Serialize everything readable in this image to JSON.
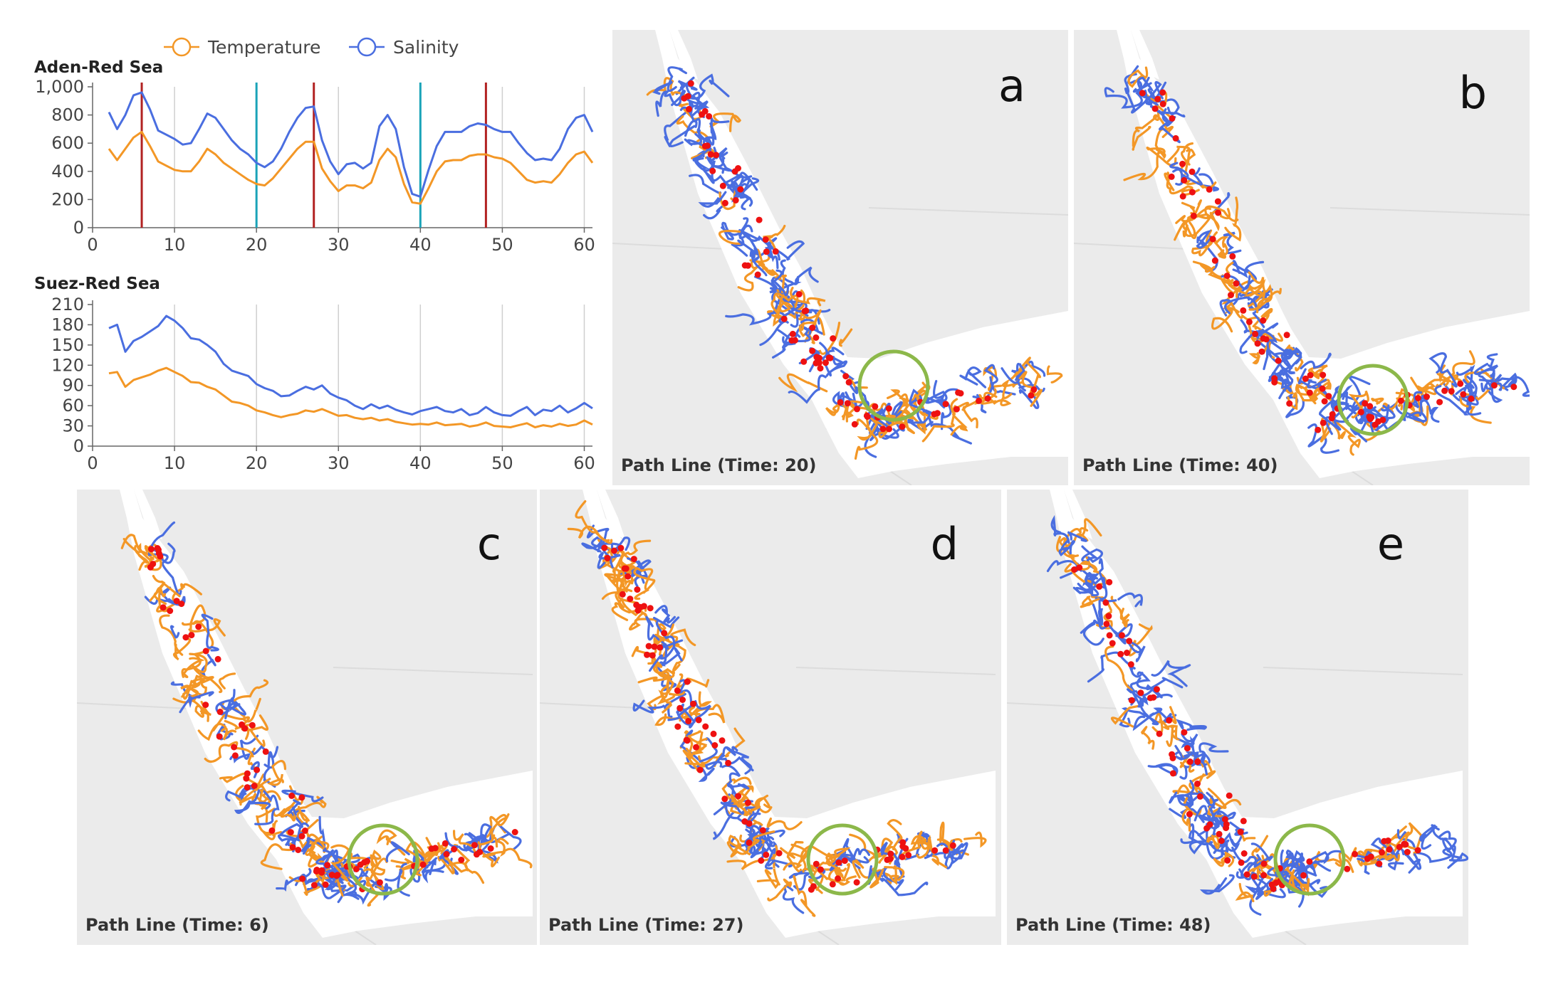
{
  "legend": {
    "temperature": "Temperature",
    "salinity": "Salinity"
  },
  "colors": {
    "temperature": "#f39726",
    "salinity": "#4a6ee0",
    "red_marker": "#b22222",
    "teal_marker": "#1aa3b8",
    "circle": "#8cb84a",
    "particle": "#ee1111",
    "land": "#ebebeb",
    "sea": "#ffffff"
  },
  "chart_data": [
    {
      "type": "line",
      "title": "Aden-Red Sea",
      "xlim": [
        0,
        61
      ],
      "ylim": [
        0,
        1000
      ],
      "xticks": [
        0,
        10,
        20,
        30,
        40,
        50,
        60
      ],
      "yticks": [
        0,
        200,
        400,
        600,
        800,
        1000
      ],
      "ytick_labels": [
        "0",
        "200",
        "400",
        "600",
        "800",
        "1,000"
      ],
      "x": [
        2,
        3,
        4,
        5,
        6,
        7,
        8,
        9,
        10,
        11,
        12,
        13,
        14,
        15,
        16,
        17,
        18,
        19,
        20,
        21,
        22,
        23,
        24,
        25,
        26,
        27,
        28,
        29,
        30,
        31,
        32,
        33,
        34,
        35,
        36,
        37,
        38,
        39,
        40,
        41,
        42,
        43,
        44,
        45,
        46,
        47,
        48,
        49,
        50,
        51,
        52,
        53,
        54,
        55,
        56,
        57,
        58,
        59,
        60,
        61
      ],
      "series": [
        {
          "name": "Temperature",
          "values": [
            560,
            480,
            560,
            640,
            680,
            580,
            470,
            440,
            410,
            400,
            400,
            470,
            560,
            520,
            460,
            420,
            380,
            340,
            310,
            300,
            350,
            420,
            490,
            560,
            610,
            610,
            420,
            330,
            260,
            300,
            300,
            280,
            320,
            480,
            560,
            500,
            310,
            180,
            170,
            280,
            400,
            470,
            480,
            480,
            510,
            520,
            520,
            500,
            490,
            460,
            400,
            340,
            320,
            330,
            320,
            380,
            460,
            520,
            540,
            460
          ]
        },
        {
          "name": "Salinity",
          "values": [
            820,
            700,
            800,
            940,
            960,
            840,
            690,
            660,
            630,
            590,
            600,
            700,
            810,
            780,
            700,
            620,
            560,
            520,
            460,
            430,
            470,
            560,
            680,
            780,
            850,
            860,
            620,
            470,
            380,
            450,
            460,
            420,
            460,
            720,
            800,
            700,
            430,
            240,
            220,
            410,
            580,
            680,
            680,
            680,
            720,
            740,
            730,
            700,
            680,
            680,
            600,
            530,
            480,
            490,
            480,
            560,
            700,
            780,
            800,
            680
          ]
        }
      ],
      "vertical_markers": [
        {
          "x": 6,
          "color": "red"
        },
        {
          "x": 20,
          "color": "teal"
        },
        {
          "x": 27,
          "color": "red"
        },
        {
          "x": 40,
          "color": "teal"
        },
        {
          "x": 48,
          "color": "red"
        }
      ]
    },
    {
      "type": "line",
      "title": "Suez-Red Sea",
      "xlim": [
        0,
        61
      ],
      "ylim": [
        0,
        210
      ],
      "xticks": [
        0,
        10,
        20,
        30,
        40,
        50,
        60
      ],
      "yticks": [
        0,
        30,
        60,
        90,
        120,
        150,
        180,
        210
      ],
      "ytick_labels": [
        "0",
        "30",
        "60",
        "90",
        "120",
        "150",
        "180",
        "210"
      ],
      "x": [
        2,
        3,
        4,
        5,
        6,
        7,
        8,
        9,
        10,
        11,
        12,
        13,
        14,
        15,
        16,
        17,
        18,
        19,
        20,
        21,
        22,
        23,
        24,
        25,
        26,
        27,
        28,
        29,
        30,
        31,
        32,
        33,
        34,
        35,
        36,
        37,
        38,
        39,
        40,
        41,
        42,
        43,
        44,
        45,
        46,
        47,
        48,
        49,
        50,
        51,
        52,
        53,
        54,
        55,
        56,
        57,
        58,
        59,
        60,
        61
      ],
      "series": [
        {
          "name": "Temperature",
          "values": [
            108,
            110,
            88,
            98,
            102,
            106,
            112,
            116,
            110,
            104,
            95,
            94,
            88,
            84,
            75,
            66,
            64,
            60,
            53,
            50,
            46,
            43,
            46,
            48,
            53,
            51,
            55,
            50,
            45,
            46,
            42,
            40,
            42,
            38,
            40,
            36,
            34,
            32,
            33,
            32,
            35,
            31,
            32,
            33,
            29,
            31,
            35,
            30,
            29,
            28,
            31,
            34,
            28,
            31,
            29,
            33,
            30,
            32,
            38,
            32
          ]
        },
        {
          "name": "Salinity",
          "values": [
            175,
            180,
            140,
            156,
            162,
            170,
            178,
            193,
            186,
            175,
            160,
            158,
            150,
            140,
            122,
            112,
            108,
            104,
            92,
            86,
            82,
            74,
            75,
            82,
            88,
            84,
            90,
            78,
            72,
            68,
            60,
            55,
            62,
            56,
            60,
            54,
            50,
            47,
            52,
            55,
            58,
            52,
            50,
            55,
            46,
            49,
            58,
            50,
            46,
            45,
            52,
            58,
            46,
            54,
            52,
            60,
            50,
            56,
            64,
            56
          ]
        }
      ]
    }
  ],
  "panels": [
    {
      "id": "a",
      "label": "a",
      "caption": "Path Line (Time: 20)"
    },
    {
      "id": "b",
      "label": "b",
      "caption": "Path Line (Time: 40)"
    },
    {
      "id": "c",
      "label": "c",
      "caption": "Path Line (Time: 6)"
    },
    {
      "id": "d",
      "label": "d",
      "caption": "Path Line (Time: 27)"
    },
    {
      "id": "e",
      "label": "e",
      "caption": "Path Line (Time: 48)"
    }
  ]
}
